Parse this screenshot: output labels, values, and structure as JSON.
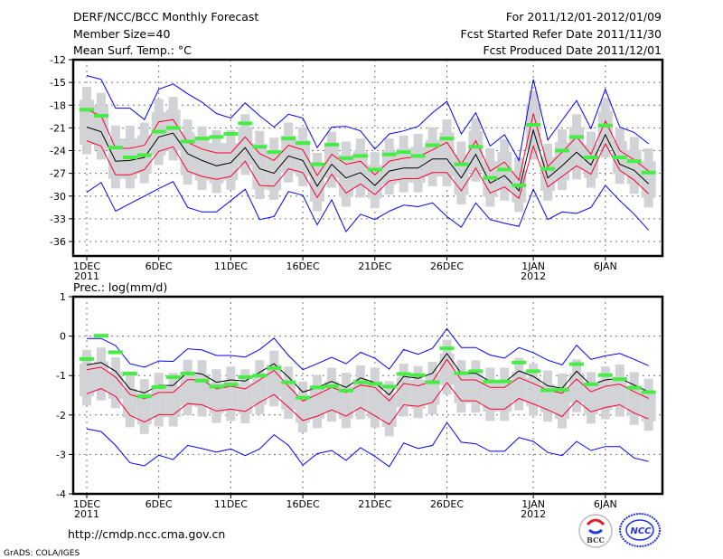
{
  "header": {
    "title": "DERF/NCC/BCC Monthly Forecast",
    "member_size": "Member Size=40",
    "period": "For 2011/12/01-2012/01/09",
    "refer_date": "Fcst Started Refer Date 2011/11/30",
    "produced_date": "Fcst Produced Date 2011/12/01"
  },
  "footer": {
    "url": "http://cmdp.ncc.cma.gov.cn",
    "grads": "GrADS: COLA/IGES",
    "logo_bcc": "BCC",
    "logo_ncc": "NCC"
  },
  "colors": {
    "max_min": "#0000ff",
    "spread": "#ff0030",
    "mean": "#000000",
    "marker": "#44ee44",
    "box": "#d2d3d6"
  },
  "chart_data": [
    {
      "type": "line",
      "title": "Mean Surf. Temp.: °C",
      "ylabel": "°C",
      "ylim": [
        -38,
        -12
      ],
      "yticks": [
        "-12",
        "-15",
        "-18",
        "-21",
        "-24",
        "-27",
        "-30",
        "-33",
        "-36"
      ],
      "ytick_values": [
        -12,
        -15,
        -18,
        -21,
        -24,
        -27,
        -30,
        -33,
        -36
      ],
      "xticks": [
        {
          "day": 1,
          "label": "1DEC",
          "sub": "2011"
        },
        {
          "day": 6,
          "label": "6DEC"
        },
        {
          "day": 11,
          "label": "11DEC"
        },
        {
          "day": 16,
          "label": "16DEC"
        },
        {
          "day": 21,
          "label": "21DEC"
        },
        {
          "day": 26,
          "label": "26DEC"
        },
        {
          "day": 32,
          "label": "1JAN",
          "sub": "2012"
        },
        {
          "day": 37,
          "label": "6JAN"
        }
      ],
      "days": 40,
      "grid": true,
      "series": [
        {
          "name": "max",
          "color": "#0000ff",
          "values": [
            -14.1,
            -14.6,
            -18.4,
            -18.4,
            -19.9,
            -15.9,
            -15.2,
            -16.5,
            -17.6,
            -19.1,
            -19.7,
            -17.7,
            -19.4,
            -20.9,
            -19.2,
            -19.7,
            -23.6,
            -20.9,
            -20.8,
            -21.4,
            -23.8,
            -21.8,
            -21.4,
            -20.8,
            -19.0,
            -17.5,
            -21.8,
            -19.0,
            -23.4,
            -21.9,
            -25.3,
            -14.6,
            -22.6,
            -20.0,
            -17.4,
            -21.1,
            -15.9,
            -20.9,
            -21.6,
            -23.1
          ]
        },
        {
          "name": "upper",
          "color": "#ff0030",
          "values": [
            -18.6,
            -19.4,
            -23.7,
            -23.7,
            -23.3,
            -20.2,
            -19.9,
            -22.9,
            -23.8,
            -24.3,
            -24.3,
            -22.2,
            -24.4,
            -25.3,
            -23.3,
            -23.9,
            -27.3,
            -24.5,
            -25.8,
            -25.4,
            -27.2,
            -25.4,
            -25.0,
            -24.8,
            -23.9,
            -22.9,
            -25.8,
            -22.7,
            -26.7,
            -25.5,
            -27.9,
            -19.1,
            -26.1,
            -24.2,
            -22.2,
            -24.5,
            -20.1,
            -24.0,
            -25.2,
            -26.7
          ]
        },
        {
          "name": "mean",
          "color": "#000000",
          "values": [
            -20.9,
            -21.5,
            -25.4,
            -25.3,
            -24.9,
            -22.2,
            -21.7,
            -24.4,
            -25.3,
            -26.0,
            -25.6,
            -23.6,
            -26.4,
            -27.0,
            -24.7,
            -25.3,
            -28.7,
            -25.8,
            -27.6,
            -26.9,
            -28.6,
            -26.7,
            -26.3,
            -26.3,
            -25.1,
            -25.1,
            -27.6,
            -24.5,
            -28.3,
            -27.3,
            -29.3,
            -21.3,
            -27.6,
            -26.0,
            -24.2,
            -25.9,
            -21.9,
            -25.8,
            -26.6,
            -28.4
          ]
        },
        {
          "name": "lower",
          "color": "#ff0030",
          "values": [
            -22.7,
            -23.4,
            -27.2,
            -27.2,
            -26.5,
            -24.1,
            -23.5,
            -26.7,
            -27.4,
            -27.8,
            -27.4,
            -25.4,
            -28.6,
            -28.7,
            -26.4,
            -26.9,
            -30.2,
            -27.1,
            -29.6,
            -28.4,
            -29.8,
            -28.0,
            -27.7,
            -27.7,
            -26.9,
            -26.9,
            -29.3,
            -26.3,
            -29.6,
            -28.8,
            -30.3,
            -23.4,
            -28.8,
            -27.4,
            -26.0,
            -27.1,
            -23.1,
            -26.6,
            -27.9,
            -29.7
          ]
        },
        {
          "name": "min",
          "color": "#0000ff",
          "values": [
            -29.5,
            -28.2,
            -32.0,
            -31.0,
            -30.0,
            -29.0,
            -28.1,
            -31.5,
            -32.1,
            -32.1,
            -30.6,
            -29.1,
            -33.1,
            -32.7,
            -29.4,
            -29.9,
            -33.8,
            -30.5,
            -34.7,
            -32.4,
            -33.1,
            -32.0,
            -31.2,
            -31.4,
            -30.9,
            -32.7,
            -34.1,
            -30.9,
            -33.1,
            -33.6,
            -34.0,
            -29.1,
            -33.1,
            -32.1,
            -32.3,
            -31.5,
            -28.6,
            -30.6,
            -32.4,
            -34.5
          ]
        },
        {
          "name": "marker",
          "color": "#44ee44",
          "values": [
            -18.6,
            -19.4,
            -23.6,
            -24.9,
            -24.6,
            -21.5,
            -21.0,
            -22.8,
            -22.4,
            -22.2,
            -21.8,
            -20.4,
            -23.5,
            -24.2,
            -22.4,
            -23.0,
            -25.8,
            -23.2,
            -25.0,
            -24.7,
            -26.5,
            -24.5,
            -24.2,
            -24.7,
            -23.3,
            -22.4,
            -25.8,
            -23.5,
            -27.6,
            -26.5,
            -28.6,
            -20.6,
            -26.4,
            -24.0,
            -22.2,
            -24.9,
            -20.7,
            -24.9,
            -25.4,
            -26.9
          ]
        }
      ]
    },
    {
      "type": "line",
      "title": "Prec.: log(mm/d)",
      "ylabel": "log(mm/d)",
      "ylim": [
        -4,
        1
      ],
      "yticks": [
        "1",
        "0",
        "-1",
        "-2",
        "-3",
        "-4"
      ],
      "ytick_values": [
        1,
        0,
        -1,
        -2,
        -3,
        -4
      ],
      "xticks": [
        {
          "day": 1,
          "label": "1DEC",
          "sub": "2011"
        },
        {
          "day": 6,
          "label": "6DEC"
        },
        {
          "day": 11,
          "label": "11DEC"
        },
        {
          "day": 16,
          "label": "16DEC"
        },
        {
          "day": 21,
          "label": "21DEC"
        },
        {
          "day": 26,
          "label": "26DEC"
        },
        {
          "day": 32,
          "label": "1JAN",
          "sub": "2012"
        },
        {
          "day": 37,
          "label": "6JAN"
        }
      ],
      "days": 40,
      "grid": true,
      "series": [
        {
          "name": "max",
          "color": "#0000ff",
          "values": [
            -0.06,
            -0.06,
            -0.24,
            -0.7,
            -0.79,
            -0.63,
            -0.64,
            -0.32,
            -0.35,
            -0.49,
            -0.49,
            -0.53,
            -0.34,
            -0.05,
            -0.49,
            -0.85,
            -0.7,
            -0.54,
            -0.7,
            -0.41,
            -0.56,
            -0.84,
            -0.34,
            -0.46,
            -0.31,
            0.19,
            -0.29,
            -0.29,
            -0.48,
            -0.56,
            -0.29,
            -0.42,
            -0.61,
            -0.73,
            -0.23,
            -0.59,
            -0.5,
            -0.44,
            -0.59,
            -0.75
          ]
        },
        {
          "name": "upper",
          "color": "#ff0030",
          "values": [
            -0.85,
            -0.79,
            -1.04,
            -1.48,
            -1.59,
            -1.43,
            -1.43,
            -1.1,
            -1.11,
            -1.34,
            -1.27,
            -1.34,
            -1.11,
            -0.87,
            -1.27,
            -1.65,
            -1.48,
            -1.3,
            -1.43,
            -1.24,
            -1.3,
            -1.64,
            -1.2,
            -1.26,
            -1.15,
            -0.59,
            -1.11,
            -1.11,
            -1.3,
            -1.3,
            -1.05,
            -1.2,
            -1.37,
            -1.45,
            -1.09,
            -1.41,
            -1.27,
            -1.22,
            -1.41,
            -1.58
          ]
        },
        {
          "name": "mean",
          "color": "#000000",
          "values": [
            -0.73,
            -0.67,
            -0.89,
            -1.34,
            -1.44,
            -1.25,
            -1.25,
            -0.91,
            -0.96,
            -1.17,
            -1.11,
            -1.14,
            -0.92,
            -0.7,
            -1.04,
            -1.42,
            -1.3,
            -1.15,
            -1.3,
            -1.06,
            -1.18,
            -1.49,
            -1.02,
            -1.07,
            -0.94,
            -0.44,
            -0.95,
            -0.94,
            -1.15,
            -1.17,
            -0.88,
            -1.02,
            -1.26,
            -1.32,
            -0.89,
            -1.24,
            -1.11,
            -1.07,
            -1.24,
            -1.41
          ]
        },
        {
          "name": "lower",
          "color": "#ff0030",
          "values": [
            -1.46,
            -1.33,
            -1.53,
            -2.01,
            -2.18,
            -1.99,
            -1.99,
            -1.71,
            -1.74,
            -1.9,
            -1.85,
            -1.91,
            -1.68,
            -1.48,
            -1.8,
            -2.14,
            -2.03,
            -1.87,
            -2.03,
            -1.81,
            -2.02,
            -2.24,
            -1.74,
            -1.78,
            -1.68,
            -1.18,
            -1.64,
            -1.64,
            -1.85,
            -1.85,
            -1.58,
            -1.72,
            -1.87,
            -2.04,
            -1.63,
            -1.92,
            -1.81,
            -1.74,
            -1.95,
            -2.1
          ]
        },
        {
          "name": "min",
          "color": "#0000ff",
          "values": [
            -2.35,
            -2.42,
            -2.77,
            -3.21,
            -3.29,
            -3.02,
            -3.13,
            -2.77,
            -2.85,
            -2.94,
            -2.86,
            -3.03,
            -2.86,
            -2.5,
            -2.77,
            -3.27,
            -2.98,
            -2.9,
            -3.15,
            -2.83,
            -3.05,
            -3.31,
            -2.71,
            -2.85,
            -2.77,
            -2.19,
            -2.69,
            -2.73,
            -2.92,
            -2.92,
            -2.57,
            -2.67,
            -2.95,
            -3.03,
            -2.67,
            -2.9,
            -2.8,
            -2.8,
            -3.09,
            -3.18
          ]
        },
        {
          "name": "marker",
          "color": "#44ee44",
          "values": [
            -0.58,
            0.01,
            -0.41,
            -0.95,
            -1.53,
            -1.29,
            -1.04,
            -0.95,
            -1.13,
            -1.28,
            -1.23,
            -1.04,
            -1.0,
            -0.81,
            -1.17,
            -1.56,
            -1.3,
            -1.27,
            -1.38,
            -1.17,
            -1.21,
            -1.28,
            -0.96,
            -0.99,
            -1.17,
            -0.31,
            -0.94,
            -0.89,
            -1.15,
            -1.15,
            -0.67,
            -0.89,
            -1.37,
            -1.36,
            -0.71,
            -1.22,
            -0.99,
            -1.09,
            -1.31,
            -1.42
          ]
        }
      ]
    }
  ]
}
